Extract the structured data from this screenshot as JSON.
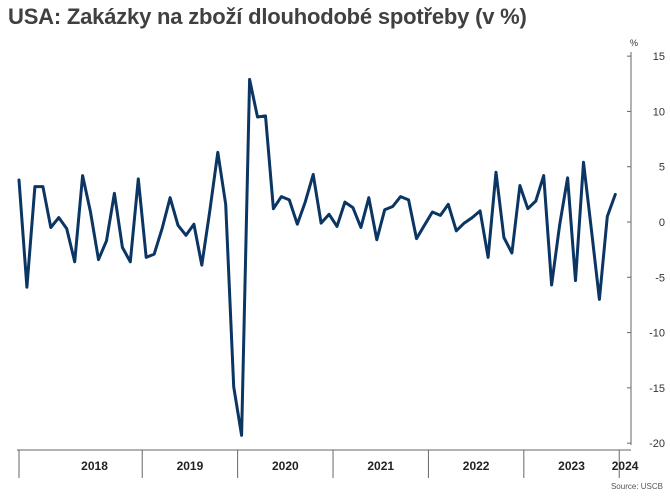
{
  "chart_data": {
    "type": "line",
    "title": "USA: Zakázky na zboží dlouhodobé spotřeby (v %)",
    "ylabel": "%",
    "source": "Source: USCB",
    "ylim": [
      -20,
      15
    ],
    "yticks": [
      15,
      10,
      5,
      0,
      -5,
      -10,
      -15,
      -20
    ],
    "x_labels": [
      "2018",
      "2019",
      "2020",
      "2021",
      "2022",
      "2023",
      "2024"
    ],
    "x_start": "2017-09",
    "grid": false,
    "color": "#0b3563",
    "series": [
      {
        "values": [
          3.8,
          -5.9,
          3.2,
          3.2,
          -0.5,
          0.4,
          -0.6,
          -3.6,
          4.2,
          0.9,
          -3.4,
          -1.7,
          2.6,
          -2.3,
          -3.6,
          3.9,
          -3.2,
          -2.9,
          -0.6,
          2.2,
          -0.3,
          -1.2,
          -0.2,
          -3.9,
          1.0,
          6.3,
          1.6,
          -14.9,
          -19.3,
          12.9,
          9.5,
          9.6,
          1.2,
          2.3,
          2.0,
          -0.2,
          1.8,
          4.3,
          -0.1,
          0.7,
          -0.4,
          1.8,
          1.3,
          -0.5,
          2.2,
          -1.6,
          1.1,
          1.4,
          2.3,
          2.0,
          -1.5,
          -0.3,
          0.9,
          0.6,
          1.6,
          -0.8,
          -0.1,
          0.4,
          1.0,
          -3.2,
          4.5,
          -1.4,
          -2.8,
          3.3,
          1.2,
          1.9,
          4.2,
          -5.7,
          -0.3,
          4.0,
          -5.3,
          5.4,
          -0.7,
          -7.0,
          0.5,
          2.5
        ]
      }
    ]
  }
}
